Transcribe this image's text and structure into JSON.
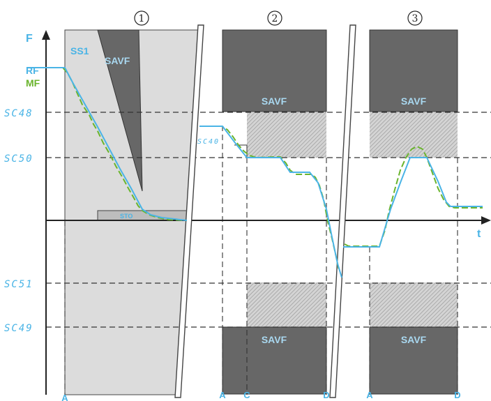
{
  "colors": {
    "reference_frequency": "#4ab4e6",
    "motor_frequency": "#6ab42d",
    "savf_zone": "#676767",
    "ss1_zone": "#dcdcdc",
    "hatch_zone": "#b5b5b5"
  },
  "axes": {
    "y_label": "F",
    "x_label": "t"
  },
  "legend": {
    "rf": "RF",
    "mf": "MF"
  },
  "sections": [
    {
      "number": "1"
    },
    {
      "number": "2"
    },
    {
      "number": "3"
    }
  ],
  "parameters": {
    "sc48": "SC48",
    "sc50": "SC50",
    "sc51": "SC51",
    "sc49": "SC49",
    "sc40": "SC40"
  },
  "zones": {
    "ss1": "SS1",
    "savf": "SAVF",
    "sto": "STO"
  },
  "time_markers": {
    "a": "A",
    "c": "C",
    "d": "D"
  }
}
